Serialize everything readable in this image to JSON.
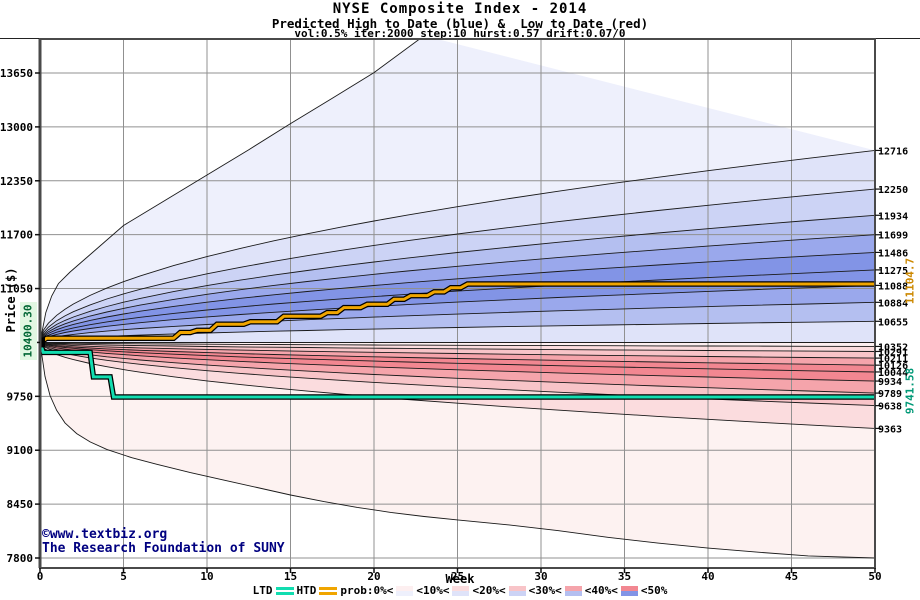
{
  "header": {
    "title": "NYSE Composite Index - 2014",
    "subtitle": "Predicted High to Date (blue) &  Low to Date (red)",
    "params": "vol:0.5% iter:2000 step:10 hurst:0.57 drift:0.07/0"
  },
  "axes": {
    "y_label": "Price ($)",
    "x_label": "Week",
    "y_ticks": [
      7800,
      8450,
      9100,
      9750,
      10400,
      11050,
      11700,
      12350,
      13000,
      13650
    ],
    "x_ticks": [
      0,
      5,
      10,
      15,
      20,
      25,
      30,
      35,
      40,
      45,
      50
    ],
    "start_label": "10400.30"
  },
  "watermark": {
    "line1": "©www.textbiz.org",
    "line2": "The Research Foundation of SUNY"
  },
  "legend": {
    "ltd_label": "LTD",
    "htd_label": "HTD",
    "prob_label": "prob:0%<",
    "bands": [
      {
        "label": "<10%<",
        "red": "#fdeff0",
        "blue": "#eef0fc"
      },
      {
        "label": "<20%<",
        "red": "#fbdcde",
        "blue": "#dfe3f9"
      },
      {
        "label": "<30%<",
        "red": "#f8c4c8",
        "blue": "#ccd3f5"
      },
      {
        "label": "<40%<",
        "red": "#f5a4ab",
        "blue": "#b4bff0"
      },
      {
        "label": "<50%",
        "red": "#f28791",
        "blue": "#8294e6"
      }
    ]
  },
  "chart_data": {
    "type": "area",
    "title": "NYSE Composite Index - 2014 predicted high/low percentile fan",
    "xlabel": "Week",
    "ylabel": "Price ($)",
    "x_range": [
      0,
      50
    ],
    "y_range": [
      7800,
      13650
    ],
    "start_value": 10400.3,
    "htd_final": "11104.7",
    "ltd_final": "9741.58",
    "blue_percentile_ends": [
      12716,
      12250,
      11934,
      11699,
      11486,
      11275,
      11088,
      10884,
      10655
    ],
    "red_percentile_ends": [
      10352,
      10291,
      10211,
      10126,
      10044,
      9934,
      9789,
      9638,
      9363
    ],
    "upper_envelope": [
      [
        0,
        10400.3
      ],
      [
        0.35,
        10760
      ],
      [
        0.7,
        10960
      ],
      [
        1.1,
        11110
      ],
      [
        1.8,
        11250
      ],
      [
        3,
        11460
      ],
      [
        5,
        11810
      ],
      [
        7.5,
        12115
      ],
      [
        10,
        12420
      ],
      [
        12.5,
        12725
      ],
      [
        15,
        13040
      ],
      [
        17.5,
        13345
      ],
      [
        20,
        13655
      ],
      [
        23,
        14100
      ]
    ],
    "lower_envelope": [
      [
        0,
        10400.3
      ],
      [
        0.3,
        9990
      ],
      [
        0.6,
        9760
      ],
      [
        1,
        9580
      ],
      [
        1.5,
        9430
      ],
      [
        2.2,
        9300
      ],
      [
        3,
        9200
      ],
      [
        4,
        9110
      ],
      [
        5.5,
        9010
      ],
      [
        7,
        8930
      ],
      [
        9,
        8830
      ],
      [
        11,
        8740
      ],
      [
        13,
        8650
      ],
      [
        15,
        8560
      ],
      [
        17,
        8480
      ],
      [
        19,
        8410
      ],
      [
        21,
        8350
      ],
      [
        23,
        8300
      ],
      [
        25,
        8260
      ],
      [
        28,
        8200
      ],
      [
        31,
        8130
      ],
      [
        34,
        8050
      ],
      [
        37,
        7980
      ],
      [
        40,
        7920
      ],
      [
        43,
        7870
      ],
      [
        46,
        7825
      ],
      [
        50,
        7800
      ]
    ],
    "htd_steps": [
      [
        0,
        10400.3
      ],
      [
        0.4,
        10450
      ],
      [
        8.0,
        10450
      ],
      [
        8.4,
        10520
      ],
      [
        9.0,
        10520
      ],
      [
        9.4,
        10545
      ],
      [
        10.2,
        10545
      ],
      [
        10.6,
        10620
      ],
      [
        12.2,
        10620
      ],
      [
        12.6,
        10650
      ],
      [
        14.2,
        10650
      ],
      [
        14.6,
        10715
      ],
      [
        16.8,
        10715
      ],
      [
        17.2,
        10760
      ],
      [
        17.8,
        10760
      ],
      [
        18.2,
        10820
      ],
      [
        19.2,
        10820
      ],
      [
        19.6,
        10860
      ],
      [
        20.8,
        10860
      ],
      [
        21.2,
        10920
      ],
      [
        21.8,
        10920
      ],
      [
        22.2,
        10965
      ],
      [
        23.2,
        10965
      ],
      [
        23.6,
        11010
      ],
      [
        24.2,
        11010
      ],
      [
        24.6,
        11060
      ],
      [
        25.2,
        11060
      ],
      [
        25.6,
        11104.7
      ],
      [
        50,
        11104.7
      ]
    ],
    "ltd_steps": [
      [
        0,
        10400.3
      ],
      [
        0.2,
        10280
      ],
      [
        3.0,
        10280
      ],
      [
        3.2,
        9985
      ],
      [
        4.2,
        9985
      ],
      [
        4.4,
        9741.58
      ],
      [
        50,
        9741.58
      ]
    ],
    "blue_bands": [
      "#eef0fc",
      "#dfe3f9",
      "#ccd3f5",
      "#b4bff0",
      "#9aa8ec",
      "#8294e6",
      "#8294e6",
      "#9aa8ec",
      "#b4bff0",
      "#dfe3f9"
    ],
    "red_bands": [
      "#fdeff0",
      "#fbdcde",
      "#f8c4c8",
      "#f5a4ab",
      "#f28791",
      "#f28791",
      "#f5a4ab",
      "#f8c4c8",
      "#fbdcde",
      "#fdf2f1"
    ],
    "colors": {
      "htd": "#f0a500",
      "ltd": "#12ddb0",
      "line": "#1a1a1a",
      "grid": "#909090",
      "frame": "#4a4a4a",
      "start_label_color": "#006633",
      "start_label_bg": "#e2f7e2",
      "htd_label_color": "#cc8800",
      "ltd_label_color": "#009977",
      "watermark_color": "#000080"
    },
    "legend_position": "bottom",
    "grid": true
  }
}
